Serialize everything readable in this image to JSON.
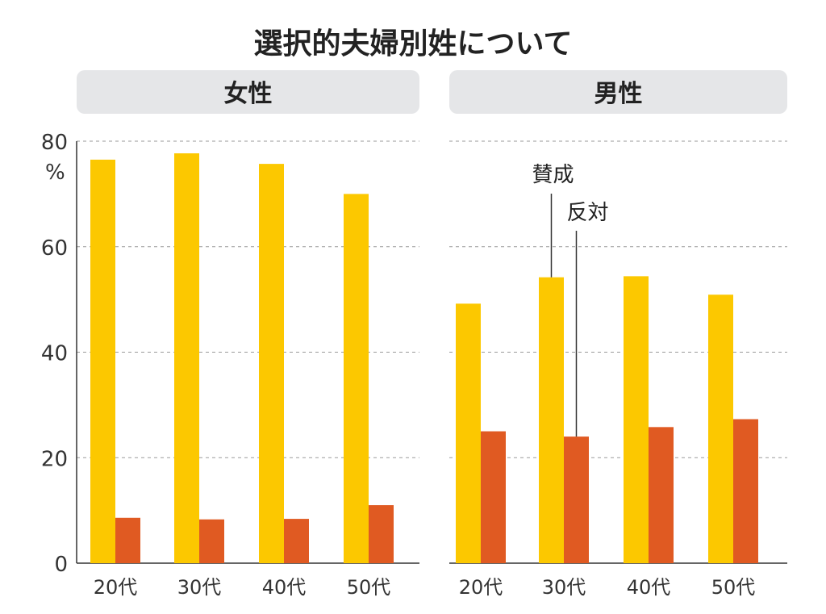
{
  "title": "選択的夫婦別姓について",
  "unit": "%",
  "colors": {
    "support": "#FCC800",
    "oppose": "#E05A22",
    "panel_header": "#E5E6E8"
  },
  "callouts": {
    "support": "賛成",
    "oppose": "反対"
  },
  "chart_data": [
    {
      "type": "bar",
      "title": "女性",
      "categories": [
        "20代",
        "30代",
        "40代",
        "50代"
      ],
      "series": [
        {
          "name": "賛成",
          "values": [
            76.5,
            77.7,
            75.7,
            70.0
          ]
        },
        {
          "name": "反対",
          "values": [
            8.6,
            8.3,
            8.4,
            11.0
          ]
        }
      ],
      "ylim": [
        0,
        80
      ],
      "yticks": [
        0,
        20,
        40,
        60,
        80
      ],
      "ylabel": "%",
      "xlabel": "",
      "grid": true,
      "legend": "none"
    },
    {
      "type": "bar",
      "title": "男性",
      "categories": [
        "20代",
        "30代",
        "40代",
        "50代"
      ],
      "series": [
        {
          "name": "賛成",
          "values": [
            49.2,
            54.2,
            54.4,
            50.9
          ]
        },
        {
          "name": "反対",
          "values": [
            25.0,
            24.0,
            25.8,
            27.3
          ]
        }
      ],
      "ylim": [
        0,
        80
      ],
      "yticks": [
        0,
        20,
        40,
        60,
        80
      ],
      "ylabel": "%",
      "xlabel": "",
      "grid": true,
      "legend": "none"
    }
  ]
}
